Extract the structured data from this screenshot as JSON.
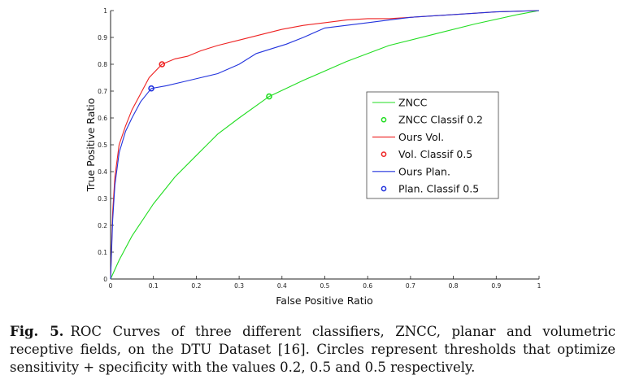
{
  "chart_data": {
    "type": "line",
    "title": "",
    "xlabel": "False Positive Ratio",
    "ylabel": "True Positive Ratio",
    "xlim": [
      0,
      1
    ],
    "ylim": [
      0,
      1
    ],
    "xticks": [
      "0",
      "0.1",
      "0.2",
      "0.3",
      "0.4",
      "0.5",
      "0.6",
      "0.7",
      "0.8",
      "0.9",
      "1"
    ],
    "yticks": [
      "0",
      "0.1",
      "0.2",
      "0.3",
      "0.4",
      "0.5",
      "0.6",
      "0.7",
      "0.8",
      "0.9",
      "1"
    ],
    "grid": false,
    "legend_position": "right",
    "series": [
      {
        "name": "ZNCC",
        "color": "#22dd22",
        "x": [
          0,
          0.02,
          0.05,
          0.1,
          0.15,
          0.2,
          0.25,
          0.3,
          0.37,
          0.45,
          0.55,
          0.65,
          0.75,
          0.85,
          0.95,
          1.0
        ],
        "y": [
          0,
          0.07,
          0.16,
          0.28,
          0.38,
          0.46,
          0.54,
          0.6,
          0.68,
          0.74,
          0.81,
          0.87,
          0.91,
          0.95,
          0.985,
          1.0
        ]
      },
      {
        "name": "Ours Vol.",
        "color": "#ee2222",
        "x": [
          0,
          0.005,
          0.01,
          0.02,
          0.035,
          0.05,
          0.07,
          0.09,
          0.12,
          0.15,
          0.18,
          0.21,
          0.25,
          0.3,
          0.35,
          0.4,
          0.45,
          0.5,
          0.55,
          0.6,
          0.65,
          0.7,
          0.8,
          0.9,
          1.0
        ],
        "y": [
          0,
          0.25,
          0.38,
          0.5,
          0.57,
          0.63,
          0.69,
          0.75,
          0.8,
          0.82,
          0.83,
          0.85,
          0.87,
          0.89,
          0.91,
          0.93,
          0.945,
          0.955,
          0.965,
          0.97,
          0.97,
          0.975,
          0.985,
          0.995,
          1.0
        ]
      },
      {
        "name": "Ours Plan.",
        "color": "#2233dd",
        "x": [
          0,
          0.005,
          0.01,
          0.02,
          0.035,
          0.05,
          0.07,
          0.095,
          0.13,
          0.17,
          0.21,
          0.25,
          0.3,
          0.34,
          0.38,
          0.41,
          0.45,
          0.5,
          0.55,
          0.6,
          0.65,
          0.7,
          0.8,
          0.9,
          1.0
        ],
        "y": [
          0,
          0.22,
          0.35,
          0.47,
          0.55,
          0.6,
          0.66,
          0.71,
          0.72,
          0.735,
          0.75,
          0.765,
          0.8,
          0.84,
          0.86,
          0.875,
          0.9,
          0.935,
          0.945,
          0.955,
          0.965,
          0.975,
          0.985,
          0.995,
          1.0
        ]
      }
    ],
    "markers": [
      {
        "name": "ZNCC Classif 0.2",
        "color": "#22dd22",
        "x": 0.37,
        "y": 0.68
      },
      {
        "name": "Vol. Classif 0.5",
        "color": "#ee2222",
        "x": 0.12,
        "y": 0.8
      },
      {
        "name": "Plan. Classif 0.5",
        "color": "#2233dd",
        "x": 0.095,
        "y": 0.71
      }
    ],
    "legend": [
      {
        "label": "ZNCC",
        "kind": "line",
        "color": "#22dd22"
      },
      {
        "label": "ZNCC Classif 0.2",
        "kind": "marker",
        "color": "#22dd22"
      },
      {
        "label": "Ours Vol.",
        "kind": "line",
        "color": "#ee2222"
      },
      {
        "label": "Vol. Classif 0.5",
        "kind": "marker",
        "color": "#ee2222"
      },
      {
        "label": "Ours Plan.",
        "kind": "line",
        "color": "#2233dd"
      },
      {
        "label": "Plan. Classif 0.5",
        "kind": "marker",
        "color": "#2233dd"
      }
    ]
  },
  "caption": {
    "label": "Fig. 5.",
    "text": "ROC Curves of three different classifiers, ZNCC, planar and volumetric receptive fields, on the DTU Dataset [16]. Circles represent thresholds that optimize sensitivity + specificity with the values 0.2, 0.5 and 0.5 respectively."
  }
}
